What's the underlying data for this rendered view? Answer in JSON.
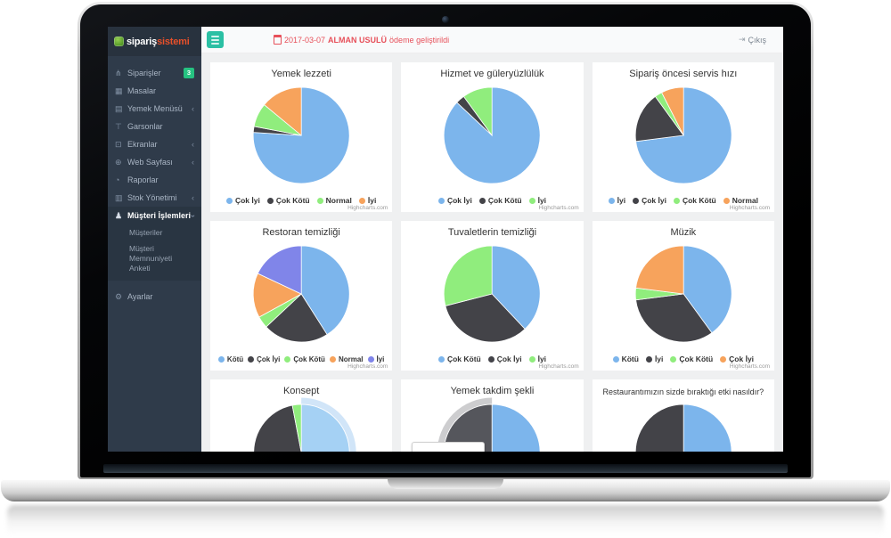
{
  "app": {
    "logo_part1": "sipariş",
    "logo_part2": "sistemi"
  },
  "topbar": {
    "notice": {
      "date": "2017-03-07",
      "highlight": "ALMAN USULÜ",
      "rest": "ödeme geliştirildi"
    },
    "logout_label": "Çıkış",
    "logout_glyph": "⇥",
    "accent_color": "#2bc0a4",
    "notice_color": "#e7505a"
  },
  "sidebar": {
    "colors": {
      "bg": "#2f3b4a",
      "logo_bg": "#28323e",
      "active_bg": "#293542",
      "badge_green": "#26c281",
      "logo_orange": "#e8502a"
    },
    "items": [
      {
        "slug": "siparisler",
        "label": "Siparişler",
        "icon": "cutlery-icon",
        "glyph": "⋔",
        "badge": "3"
      },
      {
        "slug": "masalar",
        "label": "Masalar",
        "icon": "tables-icon",
        "glyph": "▦"
      },
      {
        "slug": "yemek-menusu",
        "label": "Yemek Menüsü",
        "icon": "menu-file-icon",
        "glyph": "▤",
        "chevron": "left"
      },
      {
        "slug": "garsonlar",
        "label": "Garsonlar",
        "icon": "waiter-icon",
        "glyph": "⊤"
      },
      {
        "slug": "ekranlar",
        "label": "Ekranlar",
        "icon": "screens-icon",
        "glyph": "⊡",
        "chevron": "left"
      },
      {
        "slug": "web-sayfasi",
        "label": "Web Sayfası",
        "icon": "web-icon",
        "glyph": "⊕",
        "chevron": "left"
      },
      {
        "slug": "raporlar",
        "label": "Raporlar",
        "icon": "reports-icon",
        "glyph": "◔"
      },
      {
        "slug": "stok-yonetimi",
        "label": "Stok Yönetimi",
        "icon": "stock-icon",
        "glyph": "▥",
        "chevron": "left"
      },
      {
        "slug": "musteri-islemleri",
        "label": "Müşteri İşlemleri",
        "icon": "customers-icon",
        "glyph": "♟",
        "chevron": "down",
        "active": true,
        "children": [
          {
            "slug": "musteriler",
            "label": "Müşteriler"
          },
          {
            "slug": "musteri-memnuniyeti-anketi",
            "label": "Müşteri Memnuniyeti Anketi"
          }
        ]
      },
      {
        "slug": "ayarlar",
        "label": "Ayarlar",
        "icon": "gear-icon",
        "glyph": "⚙",
        "gap_before": true
      }
    ]
  },
  "watermark": "Highcharts.com",
  "palette": {
    "blue": "#7cb5ec",
    "dark": "#434348",
    "green": "#90ed7d",
    "orange": "#f7a35c",
    "purple": "#8085e9"
  },
  "chart_data": [
    {
      "type": "pie",
      "slug": "yemek-lezzeti",
      "title": "Yemek lezzeti",
      "legend_visible": true,
      "slices": [
        {
          "label": "Çok İyi",
          "value": 76,
          "color": "#7cb5ec"
        },
        {
          "label": "Çok Kötü",
          "value": 2,
          "color": "#434348"
        },
        {
          "label": "Normal",
          "value": 8,
          "color": "#90ed7d"
        },
        {
          "label": "İyi",
          "value": 14,
          "color": "#f7a35c"
        }
      ]
    },
    {
      "type": "pie",
      "slug": "hizmet-ve-guleryuzluluk",
      "title": "Hizmet ve güleryüzlülük",
      "legend_visible": true,
      "slices": [
        {
          "label": "Çok İyi",
          "value": 87,
          "color": "#7cb5ec"
        },
        {
          "label": "Çok Kötü",
          "value": 3,
          "color": "#434348"
        },
        {
          "label": "İyi",
          "value": 10,
          "color": "#90ed7d"
        }
      ]
    },
    {
      "type": "pie",
      "slug": "siparis-oncesi-servis-hizi",
      "title": "Sipariş öncesi servis hızı",
      "legend_visible": true,
      "slices": [
        {
          "label": "İyi",
          "value": 73,
          "color": "#7cb5ec"
        },
        {
          "label": "Çok İyi",
          "value": 17,
          "color": "#434348"
        },
        {
          "label": "Çok Kötü",
          "value": 2.5,
          "color": "#90ed7d"
        },
        {
          "label": "Normal",
          "value": 7.5,
          "color": "#f7a35c"
        }
      ]
    },
    {
      "type": "pie",
      "slug": "restoran-temizligi",
      "title": "Restoran temizliği",
      "legend_visible": true,
      "slices": [
        {
          "label": "Kötü",
          "value": 41,
          "color": "#7cb5ec"
        },
        {
          "label": "Çok İyi",
          "value": 22,
          "color": "#434348"
        },
        {
          "label": "Çok Kötü",
          "value": 4,
          "color": "#90ed7d"
        },
        {
          "label": "Normal",
          "value": 15,
          "color": "#f7a35c"
        },
        {
          "label": "İyi",
          "value": 18,
          "color": "#8085e9"
        }
      ]
    },
    {
      "type": "pie",
      "slug": "tuvaletlerin-temizligi",
      "title": "Tuvaletlerin temizliği",
      "legend_visible": true,
      "slices": [
        {
          "label": "Çok Kötü",
          "value": 38,
          "color": "#7cb5ec"
        },
        {
          "label": "Çok İyi",
          "value": 33,
          "color": "#434348"
        },
        {
          "label": "İyi",
          "value": 29,
          "color": "#90ed7d"
        }
      ]
    },
    {
      "type": "pie",
      "slug": "muzik",
      "title": "Müzik",
      "legend_visible": true,
      "slices": [
        {
          "label": "Kötü",
          "value": 40,
          "color": "#7cb5ec"
        },
        {
          "label": "İyi",
          "value": 33,
          "color": "#434348"
        },
        {
          "label": "Çok Kötü",
          "value": 4,
          "color": "#90ed7d"
        },
        {
          "label": "Çok İyi",
          "value": 23,
          "color": "#f7a35c"
        }
      ]
    },
    {
      "type": "pie",
      "slug": "konsept",
      "title": "Konsept",
      "legend_visible": false,
      "partially_visible": true,
      "slices": [
        {
          "label": "",
          "value": 47,
          "color": "#7cb5ec",
          "fill": "#a5d1f4",
          "halo": "rgba(124,181,236,0.35)"
        },
        {
          "label": "",
          "value": 50,
          "color": "#434348"
        },
        {
          "label": "",
          "value": 3,
          "color": "#90ed7d"
        }
      ]
    },
    {
      "type": "pie",
      "slug": "yemek-takdim-sekli",
      "title": "Yemek takdim şekli",
      "legend_visible": false,
      "partially_visible": true,
      "tooltip_box": true,
      "slices": [
        {
          "label": "",
          "value": 50,
          "color": "#7cb5ec"
        },
        {
          "label": "",
          "value": 50,
          "color": "#434348",
          "fill": "#55565c",
          "halo": "rgba(130,130,135,0.4)"
        }
      ]
    },
    {
      "type": "pie",
      "slug": "restaurant-etki",
      "title": "Restaurantımızın sizde bıraktığı etki nasıldır?",
      "legend_visible": false,
      "partially_visible": true,
      "small_title": true,
      "slices": [
        {
          "label": "",
          "value": 50,
          "color": "#7cb5ec"
        },
        {
          "label": "",
          "value": 50,
          "color": "#434348"
        }
      ]
    }
  ]
}
